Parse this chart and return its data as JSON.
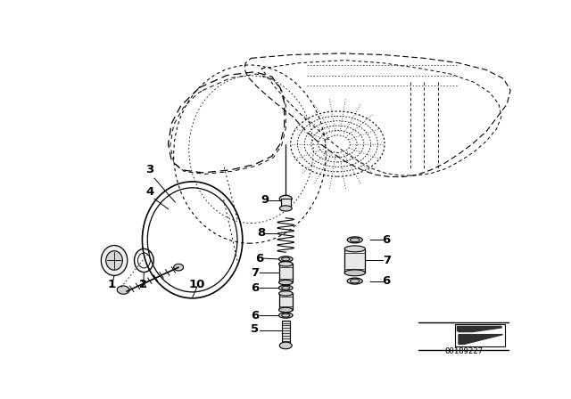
{
  "bg_color": "#ffffff",
  "line_color": "#000000",
  "part_number_text": "00189227",
  "fig_width": 6.4,
  "fig_height": 4.48,
  "dpi": 100
}
